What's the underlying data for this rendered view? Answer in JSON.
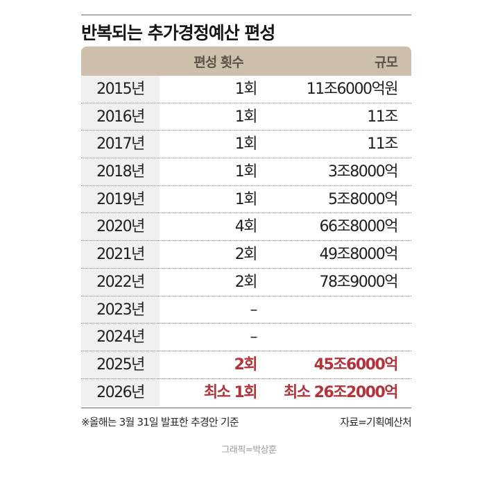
{
  "title": "반복되는 추가경정예산 편성",
  "table": {
    "headers": {
      "year": "",
      "count": "편성 횟수",
      "scale": "규모"
    },
    "rows": [
      {
        "year": "2015년",
        "count": "1회",
        "scale": "11조6000억원",
        "highlight": false
      },
      {
        "year": "2016년",
        "count": "1회",
        "scale": "11조",
        "highlight": false
      },
      {
        "year": "2017년",
        "count": "1회",
        "scale": "11조",
        "highlight": false
      },
      {
        "year": "2018년",
        "count": "1회",
        "scale": "3조8000억",
        "highlight": false
      },
      {
        "year": "2019년",
        "count": "1회",
        "scale": "5조8000억",
        "highlight": false
      },
      {
        "year": "2020년",
        "count": "4회",
        "scale": "66조8000억",
        "highlight": false
      },
      {
        "year": "2021년",
        "count": "2회",
        "scale": "49조8000억",
        "highlight": false
      },
      {
        "year": "2022년",
        "count": "2회",
        "scale": "78조9000억",
        "highlight": false
      },
      {
        "year": "2023년",
        "count": "–",
        "scale": "",
        "highlight": false
      },
      {
        "year": "2024년",
        "count": "–",
        "scale": "",
        "highlight": false
      },
      {
        "year": "2025년",
        "count": "2회",
        "scale": "45조6000억",
        "highlight": true
      },
      {
        "year": "2026년",
        "count": "최소 1회",
        "scale": "최소 26조2000억",
        "highlight": true
      }
    ]
  },
  "footnote": "※올해는 3월 31일 발표한 추경안 기준",
  "source": "자료=기획예산처",
  "credit": "그래픽=박상훈",
  "colors": {
    "header_bg": "#cdbfab",
    "year_col_bg": "#f0f0f0",
    "highlight": "#b2333b"
  }
}
